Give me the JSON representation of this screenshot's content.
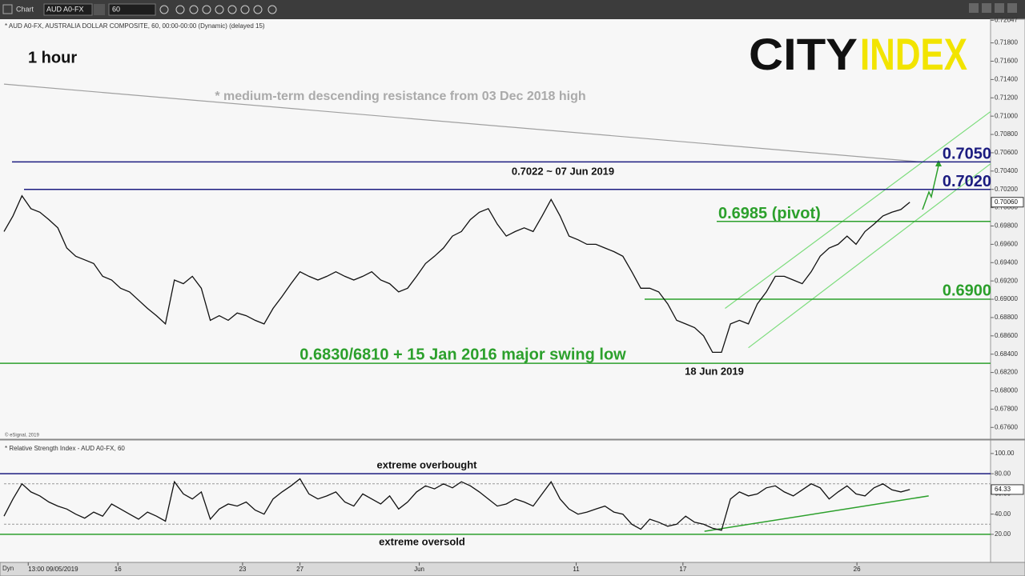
{
  "toolbar": {
    "title": "Chart",
    "symbol": "AUD A0-FX",
    "interval": "60"
  },
  "logo": {
    "left": "CITY",
    "right": "INDEX"
  },
  "chart_data": [
    {
      "type": "line",
      "title": "* AUD A0-FX, AUSTRALIA DOLLAR COMPOSITE, 60, 00:00-00:00 (Dynamic) (delayed 15)",
      "timeframe": "1 hour",
      "credit": "© eSignal, 2019",
      "series": [
        {
          "name": "AUD A0-FX",
          "color": "#111111",
          "values": [
            0.6974,
            0.6991,
            0.7013,
            0.6999,
            0.6995,
            0.6987,
            0.6978,
            0.6956,
            0.6947,
            0.6943,
            0.6939,
            0.6925,
            0.6921,
            0.6912,
            0.6908,
            0.6899,
            0.689,
            0.6882,
            0.6873,
            0.6921,
            0.6917,
            0.6925,
            0.6912,
            0.6877,
            0.6882,
            0.6877,
            0.6885,
            0.6882,
            0.6877,
            0.6873,
            0.689,
            0.6903,
            0.6917,
            0.693,
            0.6925,
            0.6921,
            0.6925,
            0.693,
            0.6925,
            0.6921,
            0.6925,
            0.693,
            0.6921,
            0.6917,
            0.6908,
            0.6912,
            0.6925,
            0.6939,
            0.6947,
            0.6956,
            0.6969,
            0.6974,
            0.6987,
            0.6995,
            0.6999,
            0.6982,
            0.6969,
            0.6974,
            0.6978,
            0.6974,
            0.6991,
            0.7009,
            0.6991,
            0.6969,
            0.6965,
            0.696,
            0.696,
            0.6956,
            0.6952,
            0.6947,
            0.693,
            0.6912,
            0.6912,
            0.6908,
            0.6895,
            0.6877,
            0.6873,
            0.6869,
            0.686,
            0.6842,
            0.6842,
            0.6873,
            0.6877,
            0.6873,
            0.6895,
            0.6908,
            0.6925,
            0.6925,
            0.6921,
            0.6917,
            0.693,
            0.6947,
            0.6956,
            0.696,
            0.6969,
            0.696,
            0.6974,
            0.6982,
            0.6991,
            0.6995,
            0.6998,
            0.7006
          ]
        }
      ],
      "current": {
        "value": 0.7006,
        "label": "0.70060"
      },
      "xlim": [
        0,
        110
      ],
      "xticks": [
        {
          "value": 2.7,
          "label": "13:00 09/05/2019"
        },
        {
          "value": 12.7,
          "label": "16"
        },
        {
          "value": 26.6,
          "label": "23"
        },
        {
          "value": 33,
          "label": "27"
        },
        {
          "value": 46.3,
          "label": "Jun"
        },
        {
          "value": 63.8,
          "label": "11"
        },
        {
          "value": 75.7,
          "label": "17"
        },
        {
          "value": 95.1,
          "label": "26"
        }
      ],
      "ylim": [
        0.6748,
        0.7205
      ],
      "yticks": [
        {
          "value": 0.676,
          "label": "0.67600"
        },
        {
          "value": 0.678,
          "label": "0.67800"
        },
        {
          "value": 0.68,
          "label": "0.68000"
        },
        {
          "value": 0.682,
          "label": "0.68200"
        },
        {
          "value": 0.684,
          "label": "0.68400"
        },
        {
          "value": 0.686,
          "label": "0.68600"
        },
        {
          "value": 0.688,
          "label": "0.68800"
        },
        {
          "value": 0.69,
          "label": "0.69000"
        },
        {
          "value": 0.692,
          "label": "0.69200"
        },
        {
          "value": 0.694,
          "label": "0.69400"
        },
        {
          "value": 0.696,
          "label": "0.69600"
        },
        {
          "value": 0.698,
          "label": "0.69800"
        },
        {
          "value": 0.7,
          "label": "0.70000"
        },
        {
          "value": 0.702,
          "label": "0.70200"
        },
        {
          "value": 0.704,
          "label": "0.70400"
        },
        {
          "value": 0.706,
          "label": "0.70600"
        },
        {
          "value": 0.708,
          "label": "0.70800"
        },
        {
          "value": 0.71,
          "label": "0.71000"
        },
        {
          "value": 0.712,
          "label": "0.71200"
        },
        {
          "value": 0.714,
          "label": "0.71400"
        },
        {
          "value": 0.716,
          "label": "0.71600"
        },
        {
          "value": 0.718,
          "label": "0.71800"
        },
        {
          "value": 0.72047,
          "label": "0.72047"
        }
      ],
      "grid": false,
      "levels": [
        {
          "value": 0.705,
          "label": "0.7050",
          "color": "#1c1c80"
        },
        {
          "value": 0.702,
          "label": "0.7020",
          "color": "#1c1c80"
        },
        {
          "value": 0.6985,
          "label": "0.6985 (pivot)",
          "color": "#2ca02c"
        },
        {
          "value": 0.69,
          "label": "0.6900",
          "color": "#2ca02c"
        },
        {
          "value": 0.683,
          "label": "0.6830/6810 + 15 Jan 2016 major swing low",
          "color": "#2ca02c"
        }
      ],
      "trendlines": [
        {
          "x": [
            0,
            102.2
          ],
          "y": [
            0.7135,
            0.705
          ],
          "color": "#a0a0a0"
        },
        {
          "x": [
            80.4,
            110
          ],
          "y": [
            0.689,
            0.7105
          ],
          "color": "#7cdc7c"
        },
        {
          "x": [
            83,
            110
          ],
          "y": [
            0.6847,
            0.7048
          ],
          "color": "#7cdc7c"
        }
      ],
      "annotations": [
        "* medium-term descending resistance from 03 Dec 2018 high",
        "0.7022 ~ 07 Jun 2019",
        "18 Jun 2019"
      ]
    },
    {
      "type": "line",
      "title": "* Relative Strength Index - AUD A0-FX, 60",
      "series": [
        {
          "name": "RSI",
          "color": "#111111",
          "values": [
            38,
            55,
            70,
            62,
            58,
            52,
            48,
            45,
            40,
            36,
            42,
            38,
            50,
            45,
            40,
            35,
            42,
            38,
            33,
            72,
            60,
            55,
            62,
            35,
            45,
            50,
            48,
            52,
            44,
            40,
            55,
            62,
            68,
            75,
            60,
            55,
            58,
            62,
            52,
            48,
            60,
            55,
            50,
            58,
            45,
            52,
            62,
            68,
            65,
            70,
            66,
            72,
            68,
            62,
            55,
            48,
            50,
            55,
            52,
            48,
            60,
            72,
            55,
            45,
            40,
            42,
            45,
            48,
            42,
            40,
            30,
            25,
            35,
            32,
            28,
            30,
            38,
            32,
            30,
            26,
            24,
            55,
            62,
            58,
            60,
            66,
            68,
            62,
            58,
            64,
            70,
            66,
            55,
            62,
            68,
            60,
            58,
            66,
            70,
            64,
            62,
            64.33
          ]
        }
      ],
      "current": 64.33,
      "xlim": [
        0,
        110
      ],
      "ylim": [
        -7,
        111
      ],
      "yticks": [
        {
          "value": 20,
          "label": "20.00"
        },
        {
          "value": 40,
          "label": "40.00"
        },
        {
          "value": 60,
          "label": "60.00"
        },
        {
          "value": 80,
          "label": "80.00"
        },
        {
          "value": 100,
          "label": "100.00"
        }
      ],
      "grid": false,
      "dashed_levels": [
        70,
        30
      ],
      "levels": [
        {
          "value": 80,
          "label": "extreme overbought",
          "color": "#1c1c80"
        },
        {
          "value": 20,
          "label": "extreme oversold",
          "color": "#2ca02c"
        }
      ],
      "trendlines": [
        {
          "x": [
            78.1,
            103.1
          ],
          "y": [
            23,
            58
          ],
          "color": "#2ca02c"
        }
      ]
    }
  ]
}
